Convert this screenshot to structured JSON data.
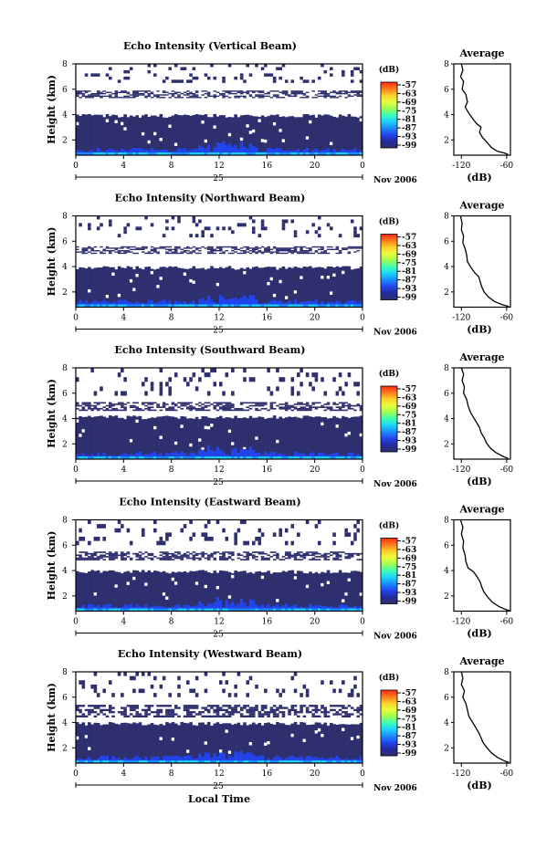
{
  "figure": {
    "xlabel": "Local Time",
    "day_label": "25",
    "month_label": "Nov 2006"
  },
  "colorbar": {
    "unit_label": "(dB)",
    "ticks": [
      "-57",
      "-63",
      "-69",
      "-75",
      "-81",
      "-87",
      "-93",
      "-99"
    ],
    "colors": [
      "#ff2a14",
      "#ff7a1e",
      "#ffd02a",
      "#e8ff3c",
      "#9cff55",
      "#3cffb6",
      "#1ad2ff",
      "#1a8aff",
      "#2244ee",
      "#232a9a",
      "#2e2f6e"
    ]
  },
  "chart_data": [
    {
      "type": "heatmap",
      "title": "Echo Intensity (Vertical Beam)",
      "ylabel": "Height (km)",
      "xlim": [
        0,
        24
      ],
      "ylim": [
        0.8,
        8
      ],
      "x_ticks": [
        "0",
        "4",
        "8",
        "12",
        "16",
        "20",
        "0"
      ],
      "y_ticks": [
        "2",
        "4",
        "6",
        "8"
      ],
      "dense_layer_top_km": 3.9,
      "sparse_layers_km": [
        [
          5.3,
          5.9
        ],
        [
          6.5,
          8.0
        ]
      ],
      "average_profile": {
        "title": "Average",
        "xlabel": "(dB)",
        "xlim": [
          -130,
          -55
        ],
        "ylim": [
          0.8,
          8
        ],
        "x_ticks": [
          "-120",
          "-60"
        ],
        "y_ticks": [
          "2",
          "4",
          "6",
          "8"
        ],
        "points": [
          [
            -120,
            8.0
          ],
          [
            -118,
            7.5
          ],
          [
            -121,
            7.0
          ],
          [
            -117,
            6.6
          ],
          [
            -119,
            6.0
          ],
          [
            -114,
            5.6
          ],
          [
            -112,
            5.0
          ],
          [
            -115,
            4.6
          ],
          [
            -110,
            4.1
          ],
          [
            -104,
            3.6
          ],
          [
            -100,
            3.3
          ],
          [
            -94,
            3.0
          ],
          [
            -96,
            2.6
          ],
          [
            -92,
            2.2
          ],
          [
            -86,
            1.8
          ],
          [
            -80,
            1.4
          ],
          [
            -72,
            1.1
          ],
          [
            -62,
            0.95
          ],
          [
            -58,
            0.85
          ]
        ]
      }
    },
    {
      "type": "heatmap",
      "title": "Echo Intensity (Northward Beam)",
      "ylabel": "Height (km)",
      "xlim": [
        0,
        24
      ],
      "ylim": [
        0.8,
        8
      ],
      "x_ticks": [
        "0",
        "4",
        "8",
        "12",
        "16",
        "20",
        "0"
      ],
      "y_ticks": [
        "2",
        "4",
        "6",
        "8"
      ],
      "dense_layer_top_km": 3.9,
      "sparse_layers_km": [
        [
          5.0,
          5.6
        ],
        [
          6.3,
          8.0
        ]
      ],
      "average_profile": {
        "title": "Average",
        "xlabel": "(dB)",
        "xlim": [
          -130,
          -55
        ],
        "ylim": [
          0.8,
          8
        ],
        "x_ticks": [
          "-120",
          "-60"
        ],
        "y_ticks": [
          "2",
          "4",
          "6",
          "8"
        ],
        "points": [
          [
            -121,
            8.0
          ],
          [
            -119,
            7.4
          ],
          [
            -120,
            6.9
          ],
          [
            -117,
            6.4
          ],
          [
            -118,
            5.9
          ],
          [
            -115,
            5.4
          ],
          [
            -113,
            4.9
          ],
          [
            -112,
            4.4
          ],
          [
            -107,
            3.9
          ],
          [
            -102,
            3.5
          ],
          [
            -97,
            3.2
          ],
          [
            -95,
            2.8
          ],
          [
            -93,
            2.4
          ],
          [
            -90,
            2.0
          ],
          [
            -84,
            1.6
          ],
          [
            -76,
            1.25
          ],
          [
            -66,
            1.0
          ],
          [
            -57,
            0.85
          ]
        ]
      }
    },
    {
      "type": "heatmap",
      "title": "Echo Intensity (Southward Beam)",
      "ylabel": "Height (km)",
      "xlim": [
        0,
        24
      ],
      "ylim": [
        0.8,
        8
      ],
      "x_ticks": [
        "0",
        "4",
        "8",
        "12",
        "16",
        "20",
        "0"
      ],
      "y_ticks": [
        "2",
        "4",
        "6",
        "8"
      ],
      "dense_layer_top_km": 4.1,
      "sparse_layers_km": [
        [
          4.6,
          5.3
        ],
        [
          5.8,
          8.0
        ]
      ],
      "average_profile": {
        "title": "Average",
        "xlabel": "(dB)",
        "xlim": [
          -130,
          -55
        ],
        "ylim": [
          0.8,
          8
        ],
        "x_ticks": [
          "-120",
          "-60"
        ],
        "y_ticks": [
          "2",
          "4",
          "6",
          "8"
        ],
        "points": [
          [
            -120,
            8.0
          ],
          [
            -117,
            7.5
          ],
          [
            -119,
            7.0
          ],
          [
            -116,
            6.5
          ],
          [
            -117,
            6.0
          ],
          [
            -113,
            5.5
          ],
          [
            -111,
            5.0
          ],
          [
            -108,
            4.5
          ],
          [
            -104,
            4.1
          ],
          [
            -100,
            3.7
          ],
          [
            -96,
            3.3
          ],
          [
            -94,
            2.9
          ],
          [
            -90,
            2.5
          ],
          [
            -87,
            2.1
          ],
          [
            -82,
            1.7
          ],
          [
            -75,
            1.35
          ],
          [
            -66,
            1.05
          ],
          [
            -58,
            0.85
          ]
        ]
      }
    },
    {
      "type": "heatmap",
      "title": "Echo Intensity (Eastward Beam)",
      "ylabel": "Height (km)",
      "xlim": [
        0,
        24
      ],
      "ylim": [
        0.8,
        8
      ],
      "x_ticks": [
        "0",
        "4",
        "8",
        "12",
        "16",
        "20",
        "0"
      ],
      "y_ticks": [
        "2",
        "4",
        "6",
        "8"
      ],
      "dense_layer_top_km": 3.9,
      "sparse_layers_km": [
        [
          4.8,
          5.5
        ],
        [
          6.0,
          8.0
        ]
      ],
      "average_profile": {
        "title": "Average",
        "xlabel": "(dB)",
        "xlim": [
          -130,
          -55
        ],
        "ylim": [
          0.8,
          8
        ],
        "x_ticks": [
          "-120",
          "-60"
        ],
        "y_ticks": [
          "2",
          "4",
          "6",
          "8"
        ],
        "points": [
          [
            -121,
            8.0
          ],
          [
            -118,
            7.4
          ],
          [
            -120,
            6.9
          ],
          [
            -117,
            6.3
          ],
          [
            -118,
            5.8
          ],
          [
            -115,
            5.2
          ],
          [
            -114,
            4.7
          ],
          [
            -111,
            4.2
          ],
          [
            -104,
            3.9
          ],
          [
            -99,
            3.5
          ],
          [
            -95,
            3.1
          ],
          [
            -93,
            2.7
          ],
          [
            -90,
            2.3
          ],
          [
            -85,
            1.9
          ],
          [
            -79,
            1.5
          ],
          [
            -70,
            1.15
          ],
          [
            -60,
            0.9
          ],
          [
            -56,
            0.85
          ]
        ]
      }
    },
    {
      "type": "heatmap",
      "title": "Echo Intensity (Westward Beam)",
      "ylabel": "Height (km)",
      "xlim": [
        0,
        24
      ],
      "ylim": [
        0.8,
        8
      ],
      "x_ticks": [
        "0",
        "4",
        "8",
        "12",
        "16",
        "20",
        "0"
      ],
      "y_ticks": [
        "2",
        "4",
        "6",
        "8"
      ],
      "dense_layer_top_km": 3.9,
      "sparse_layers_km": [
        [
          4.4,
          5.4
        ],
        [
          6.0,
          8.0
        ]
      ],
      "average_profile": {
        "title": "Average",
        "xlabel": "(dB)",
        "xlim": [
          -130,
          -55
        ],
        "ylim": [
          0.8,
          8
        ],
        "x_ticks": [
          "-120",
          "-60"
        ],
        "y_ticks": [
          "2",
          "4",
          "6",
          "8"
        ],
        "points": [
          [
            -120,
            8.0
          ],
          [
            -118,
            7.5
          ],
          [
            -120,
            7.0
          ],
          [
            -116,
            6.5
          ],
          [
            -118,
            6.0
          ],
          [
            -114,
            5.5
          ],
          [
            -112,
            5.0
          ],
          [
            -110,
            4.5
          ],
          [
            -105,
            4.0
          ],
          [
            -101,
            3.6
          ],
          [
            -97,
            3.2
          ],
          [
            -94,
            2.8
          ],
          [
            -91,
            2.4
          ],
          [
            -86,
            2.0
          ],
          [
            -80,
            1.6
          ],
          [
            -72,
            1.25
          ],
          [
            -62,
            0.95
          ],
          [
            -57,
            0.85
          ]
        ]
      }
    }
  ]
}
